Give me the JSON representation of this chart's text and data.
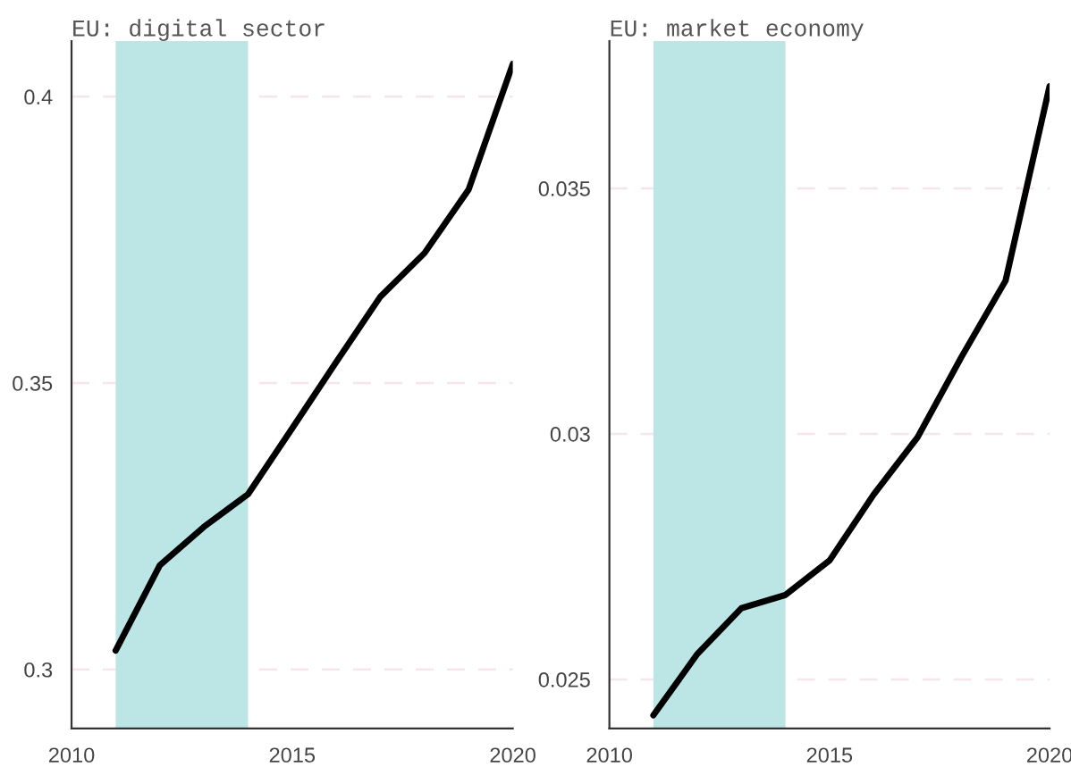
{
  "chart_data": [
    {
      "type": "line",
      "title": "EU: digital sector",
      "x": [
        2011,
        2012,
        2013,
        2014,
        2015,
        2016,
        2017,
        2018,
        2019,
        2020
      ],
      "series": [
        {
          "color": "#000000",
          "values": [
            0.3033,
            0.3182,
            0.3249,
            0.3306,
            0.3421,
            0.3537,
            0.3651,
            0.3727,
            0.3838,
            0.4057
          ]
        }
      ],
      "xlim": [
        2010,
        2020
      ],
      "xticks": [
        2010,
        2015,
        2020
      ],
      "ylim": [
        0.2897,
        0.4097
      ],
      "yticks": [
        0.3,
        0.35,
        0.4
      ],
      "grid": "y",
      "bands": [
        {
          "axis": "x",
          "from": 2011,
          "to": 2014,
          "color": "#bce6e6"
        }
      ]
    },
    {
      "type": "line",
      "title": "EU: market economy",
      "x": [
        2011,
        2012,
        2013,
        2014,
        2015,
        2016,
        2017,
        2018,
        2019,
        2020
      ],
      "series": [
        {
          "color": "#000000",
          "values": [
            0.02427,
            0.02552,
            0.02645,
            0.02672,
            0.02742,
            0.02876,
            0.02993,
            0.03157,
            0.03312,
            0.03708
          ]
        }
      ],
      "xlim": [
        2010,
        2020
      ],
      "xticks": [
        2010,
        2015,
        2020
      ],
      "ylim": [
        0.024,
        0.038
      ],
      "yticks": [
        0.025,
        0.03,
        0.035
      ],
      "grid": "y",
      "bands": [
        {
          "axis": "x",
          "from": 2011,
          "to": 2014,
          "color": "#bce6e6"
        }
      ]
    }
  ]
}
